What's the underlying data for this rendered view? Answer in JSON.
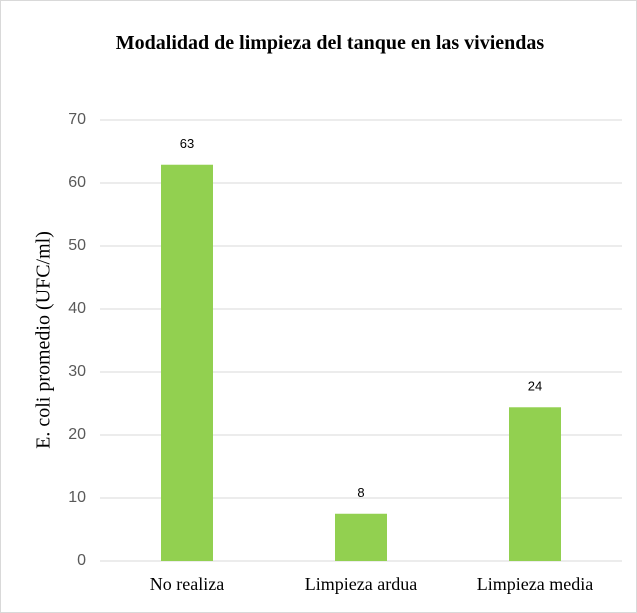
{
  "chart_data": {
    "type": "bar",
    "title": "Modalidad de limpieza del tanque en las viviendas",
    "y_label": "E. coli  promedio (UFC/ml)",
    "categories": [
      "No realiza",
      "Limpieza ardua",
      "Limpieza media"
    ],
    "values": [
      62.9,
      7.5,
      24.4
    ],
    "value_labels": [
      "63",
      "8",
      "24"
    ],
    "color": "#92d050",
    "ylim": [
      0,
      70
    ],
    "yticks": [
      0,
      10,
      20,
      30,
      40,
      50,
      60,
      70
    ],
    "grid": true
  }
}
